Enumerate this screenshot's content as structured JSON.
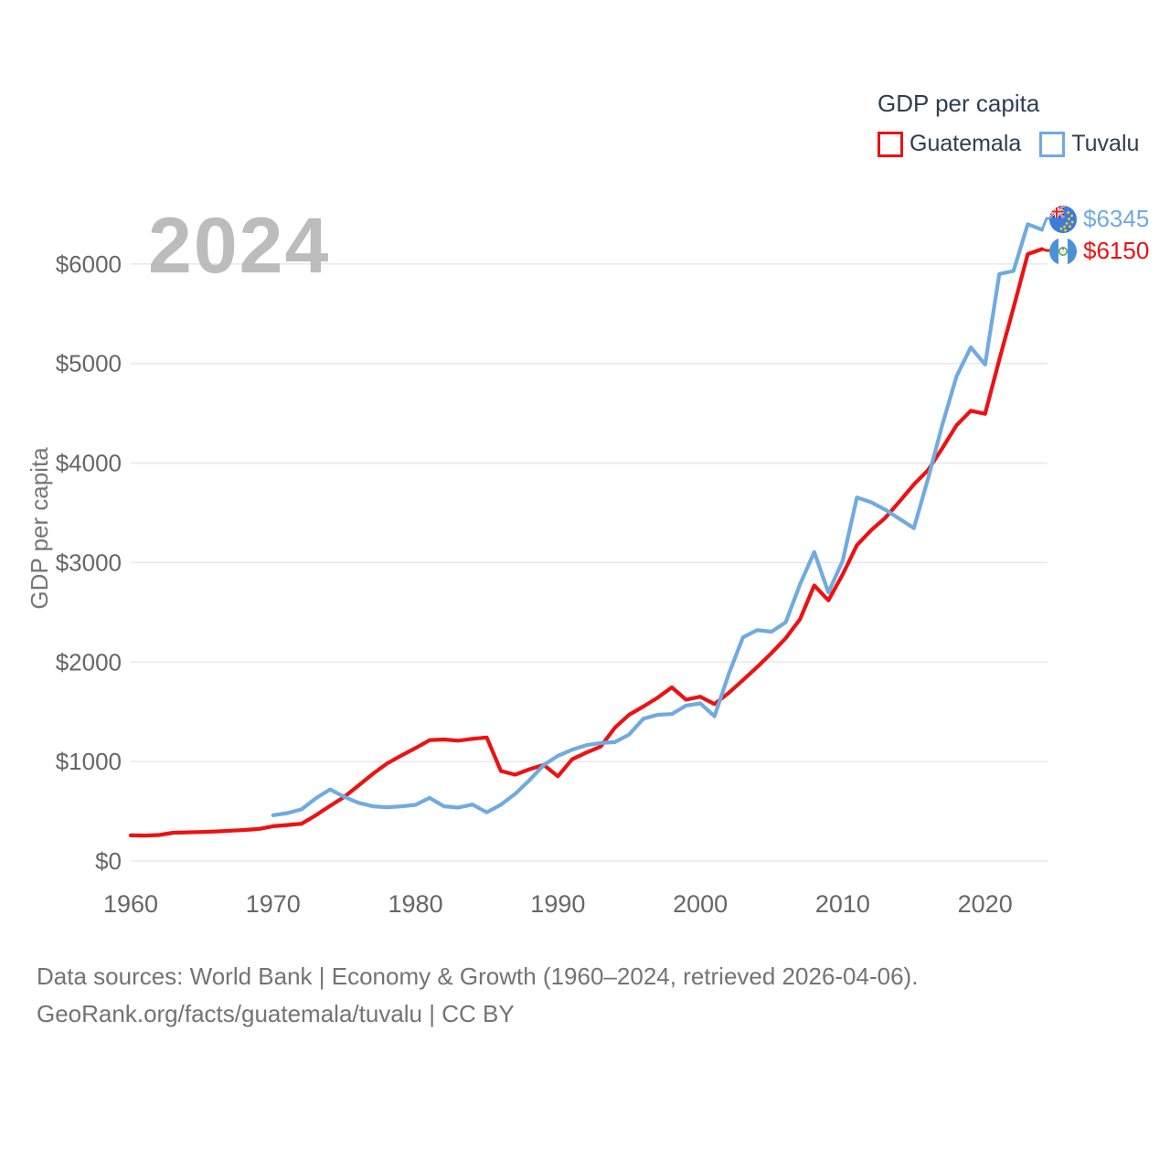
{
  "legend": {
    "title": "GDP per capita",
    "series": [
      {
        "label": "Guatemala",
        "color": "#ee1111"
      },
      {
        "label": "Tuvalu",
        "color": "#70aae2"
      }
    ]
  },
  "watermark": "2024",
  "end_labels": [
    {
      "series": "Tuvalu",
      "value_label": "$6345",
      "color": "#70aae2",
      "flag": "tuvalu-flag"
    },
    {
      "series": "Guatemala",
      "value_label": "$6150",
      "color": "#ee1111",
      "flag": "guatemala-flag"
    }
  ],
  "footer": {
    "line1": "Data sources: World Bank | Economy & Growth (1960–2024, retrieved 2026-04-06).",
    "line2": "GeoRank.org/facts/guatemala/tuvalu | CC BY"
  },
  "chart_data": {
    "type": "line",
    "title": "GDP per capita",
    "xlabel": "",
    "ylabel": "GDP per capita",
    "xlim": [
      1960,
      2024.6
    ],
    "ylim": [
      0,
      6500
    ],
    "grid": true,
    "legend_position": "top-right",
    "x_ticks": [
      1960,
      1970,
      1980,
      1990,
      2000,
      2010,
      2020
    ],
    "y_ticks": [
      {
        "value": 0,
        "label": "$0"
      },
      {
        "value": 1000,
        "label": "$1000"
      },
      {
        "value": 2000,
        "label": "$2000"
      },
      {
        "value": 3000,
        "label": "$3000"
      },
      {
        "value": 4000,
        "label": "$4000"
      },
      {
        "value": 5000,
        "label": "$5000"
      },
      {
        "value": 6000,
        "label": "$6000"
      }
    ],
    "series": [
      {
        "name": "Guatemala",
        "color": "#ee1111",
        "start_year": 1960,
        "end_year": 2024,
        "values": [
          258,
          256,
          262,
          285,
          288,
          292,
          298,
          305,
          312,
          322,
          350,
          362,
          375,
          460,
          555,
          645,
          760,
          875,
          980,
          1060,
          1135,
          1215,
          1222,
          1210,
          1228,
          1242,
          905,
          868,
          922,
          966,
          852,
          1022,
          1090,
          1150,
          1340,
          1470,
          1552,
          1642,
          1745,
          1622,
          1652,
          1578,
          1690,
          1820,
          1950,
          2090,
          2240,
          2430,
          2770,
          2620,
          2880,
          3175,
          3325,
          3450,
          3615,
          3785,
          3930,
          4150,
          4380,
          4525,
          4495,
          5040,
          5560,
          6100,
          6150
        ]
      },
      {
        "name": "Tuvalu",
        "color": "#70aae2",
        "start_year": 1970,
        "end_year": 2024,
        "values": [
          460,
          482,
          520,
          630,
          720,
          645,
          585,
          550,
          540,
          550,
          565,
          635,
          550,
          537,
          568,
          490,
          567,
          675,
          812,
          965,
          1057,
          1119,
          1165,
          1186,
          1195,
          1270,
          1430,
          1470,
          1477,
          1563,
          1585,
          1455,
          1880,
          2250,
          2320,
          2305,
          2400,
          2780,
          3105,
          2700,
          3018,
          3653,
          3606,
          3530,
          3438,
          3346,
          3846,
          4388,
          4872,
          5163,
          4990,
          5900,
          5930,
          6400,
          6345
        ]
      }
    ]
  }
}
